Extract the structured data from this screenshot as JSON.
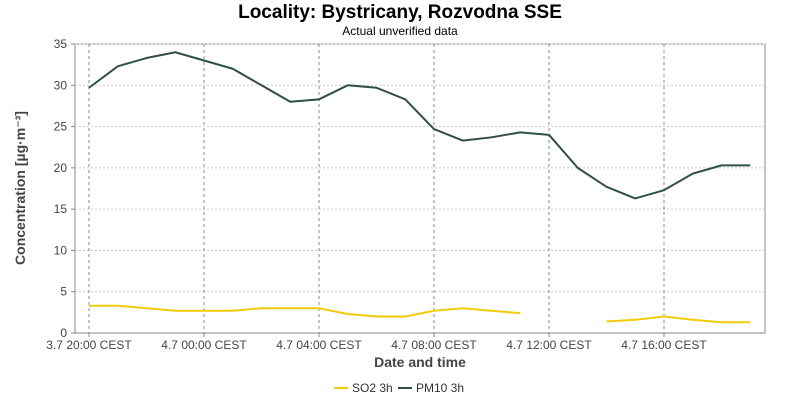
{
  "chart_data": {
    "type": "line",
    "title": "Locality: Bystricany, Rozvodna SSE",
    "subtitle": "Actual unverified data",
    "xlabel": "Date and time",
    "ylabel": "Concentration [µg·m⁻³]",
    "ylim": [
      0,
      35
    ],
    "y_ticks": [
      0,
      5,
      10,
      15,
      20,
      25,
      30,
      35
    ],
    "grid": true,
    "legend_position": "bottom-center",
    "x": [
      "3.7 20:00 CEST",
      "3.7 21:00 CEST",
      "3.7 22:00 CEST",
      "3.7 23:00 CEST",
      "4.7 00:00 CEST",
      "4.7 01:00 CEST",
      "4.7 02:00 CEST",
      "4.7 03:00 CEST",
      "4.7 04:00 CEST",
      "4.7 05:00 CEST",
      "4.7 06:00 CEST",
      "4.7 07:00 CEST",
      "4.7 08:00 CEST",
      "4.7 09:00 CEST",
      "4.7 10:00 CEST",
      "4.7 11:00 CEST",
      "4.7 12:00 CEST",
      "4.7 13:00 CEST",
      "4.7 14:00 CEST",
      "4.7 15:00 CEST",
      "4.7 16:00 CEST",
      "4.7 17:00 CEST",
      "4.7 18:00 CEST",
      "4.7 19:00 CEST"
    ],
    "x_tick_labels": [
      "3.7 20:00 CEST",
      "4.7 00:00 CEST",
      "4.7 04:00 CEST",
      "4.7 08:00 CEST",
      "4.7 12:00 CEST",
      "4.7 16:00 CEST"
    ],
    "x_tick_indices": [
      0,
      4,
      8,
      12,
      16,
      20
    ],
    "series": [
      {
        "name": "SO2 3h",
        "color": "#f2cc0c",
        "values": [
          3.3,
          3.3,
          3.0,
          2.7,
          2.7,
          2.7,
          3.0,
          3.0,
          3.0,
          2.3,
          2.0,
          2.0,
          2.7,
          3.0,
          2.7,
          2.4,
          null,
          null,
          1.4,
          1.6,
          2.0,
          1.6,
          1.3,
          1.3
        ]
      },
      {
        "name": "PM10 3h",
        "color": "#2f4f4a",
        "values": [
          29.7,
          32.3,
          33.3,
          34.0,
          33.0,
          32.0,
          30.0,
          28.0,
          28.3,
          30.0,
          29.7,
          28.3,
          24.7,
          23.3,
          23.7,
          24.3,
          24.0,
          20.0,
          17.7,
          16.3,
          17.3,
          19.3,
          20.3,
          20.3
        ]
      }
    ]
  }
}
